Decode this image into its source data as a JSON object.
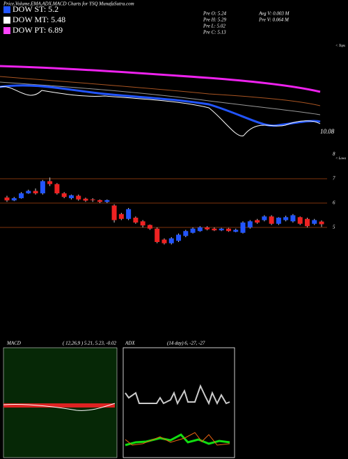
{
  "header": {
    "title": "Price,Volume,EMA,ADX,MACD Charts for YSQ MunafaSutra.com",
    "legend": [
      {
        "text": "DOW ST: 5.2",
        "color": "#2255ff"
      },
      {
        "text": "DOW MT: 5.48",
        "color": "#ffffff"
      },
      {
        "text": "DOW PT: 6.89",
        "color": "#ff44ff"
      }
    ],
    "stats": [
      "Pre  O: 5.24",
      "Pre  H: 5.29",
      "Pre  L: 5.02",
      "Pre  C: 5.13"
    ],
    "volume": [
      "Avg  V: 0.003  M",
      "Pre  V: 0.064  M"
    ]
  },
  "ema_panel": {
    "last_label": "10.08",
    "tops": "< Tops",
    "lows": "< Lows"
  },
  "chart_data": {
    "type": "candlestick",
    "open": [
      6.23,
      6.11,
      6.2,
      6.4,
      6.5,
      6.4,
      6.9,
      6.78,
      6.4,
      6.2,
      6.3,
      6.18,
      6.15,
      6.12,
      6.05,
      5.9,
      5.55,
      5.35,
      5.4,
      5.25,
      5.1,
      4.95,
      4.5,
      4.35,
      4.45,
      4.65,
      4.78,
      4.85,
      5.0,
      4.95,
      4.88,
      4.95,
      4.82,
      4.78,
      5.0,
      5.3,
      5.3,
      5.45,
      5.15,
      5.3,
      5.25,
      5.42,
      5.35,
      5.15,
      5.24
    ],
    "high": [
      6.3,
      6.25,
      6.45,
      6.55,
      6.6,
      6.95,
      7.05,
      6.82,
      6.45,
      6.35,
      6.35,
      6.22,
      6.2,
      6.15,
      6.15,
      5.95,
      5.6,
      5.8,
      5.45,
      5.3,
      5.12,
      5.0,
      4.55,
      4.6,
      4.75,
      4.9,
      5.0,
      5.05,
      5.05,
      5.0,
      4.98,
      4.98,
      4.95,
      5.25,
      5.3,
      5.35,
      5.5,
      5.5,
      5.42,
      5.48,
      5.55,
      5.45,
      5.4,
      5.35,
      5.29
    ],
    "low": [
      6.05,
      6.08,
      6.18,
      6.38,
      6.35,
      6.35,
      6.7,
      6.35,
      6.2,
      6.15,
      6.1,
      6.05,
      6.05,
      6.0,
      6.0,
      5.2,
      5.3,
      5.3,
      5.15,
      5.0,
      4.9,
      4.35,
      4.3,
      4.3,
      4.4,
      4.6,
      4.75,
      4.82,
      4.88,
      4.85,
      4.85,
      4.82,
      4.8,
      4.75,
      4.95,
      5.15,
      5.25,
      5.1,
      5.1,
      5.25,
      5.2,
      5.1,
      5.0,
      5.1,
      5.02
    ],
    "close": [
      6.11,
      6.2,
      6.4,
      6.5,
      6.4,
      6.9,
      6.78,
      6.4,
      6.25,
      6.32,
      6.15,
      6.1,
      6.12,
      6.05,
      6.12,
      5.3,
      5.35,
      5.75,
      5.2,
      5.08,
      4.95,
      4.4,
      4.35,
      4.55,
      4.7,
      4.85,
      4.95,
      5.0,
      4.92,
      4.88,
      4.95,
      4.85,
      4.9,
      5.2,
      5.25,
      5.2,
      5.45,
      5.15,
      5.4,
      5.42,
      5.5,
      5.15,
      5.05,
      5.3,
      5.13
    ],
    "up_color": "#2255ff",
    "down_color": "#ee2222",
    "ylim": [
      1,
      8
    ],
    "yticks": [
      5,
      6,
      7,
      8
    ]
  },
  "macd": {
    "label": "MACD",
    "params": "( 12,26,9 ) 5.21, 5.23, -0.02"
  },
  "adx": {
    "label": "ADX",
    "params": "(14  day) 6, -27, -27"
  }
}
